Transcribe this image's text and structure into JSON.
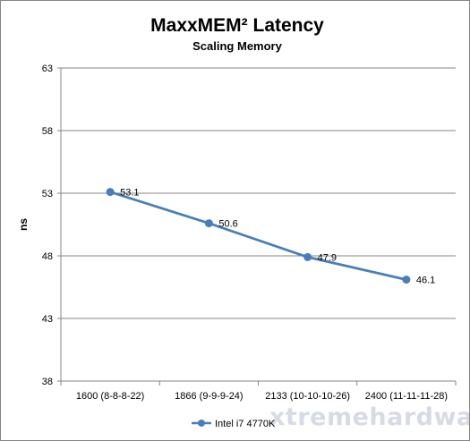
{
  "chart_data": {
    "type": "line",
    "title": "MaxxMEM² Latency",
    "subtitle": "Scaling Memory",
    "xlabel": "",
    "ylabel": "ns",
    "categories": [
      "1600 (8-8-8-22)",
      "1866 (9-9-9-24)",
      "2133 (10-10-10-26)",
      "2400 (11-11-11-28)"
    ],
    "yticks": [
      "38",
      "43",
      "48",
      "53",
      "58",
      "63"
    ],
    "ylim": [
      38,
      63
    ],
    "series": [
      {
        "name": "Intel i7 4770K",
        "values": [
          53.1,
          50.6,
          47.9,
          46.1
        ],
        "labels": [
          "53.1",
          "50.6",
          "47.9",
          "46.1"
        ],
        "color": "#4a7ebb"
      }
    ],
    "grid": true,
    "legend": "bottom"
  },
  "watermark": "xtremehardware.com"
}
